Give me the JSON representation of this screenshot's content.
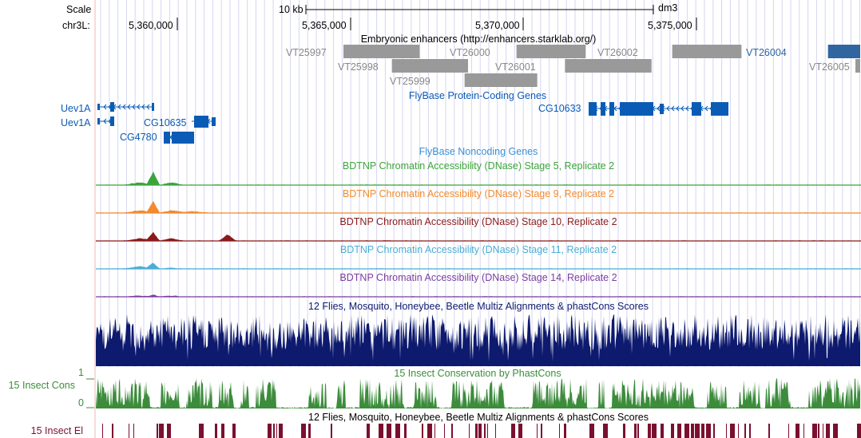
{
  "ruler": {
    "scale_label": "Scale",
    "chrom_label": "chr3L:",
    "scale_bar_text": "10 kb",
    "assembly": "dm3",
    "positions": [
      "5,360,000",
      "5,365,000",
      "5,370,000",
      "5,375,000"
    ]
  },
  "tracks": {
    "enhancers": {
      "title": "Embryonic enhancers (http://enhancers.starklab.org/)",
      "items": [
        {
          "name": "VT25997",
          "start": 5364800,
          "end": 5367000,
          "row": 0
        },
        {
          "name": "VT26000",
          "start": 5369800,
          "end": 5371800,
          "row": 0
        },
        {
          "name": "VT26002",
          "start": 5374300,
          "end": 5376300,
          "row": 0
        },
        {
          "name": "VT26004",
          "start": 5378800,
          "end": 5380700,
          "row": 0,
          "highlight": true
        },
        {
          "name": "VT25998",
          "start": 5366200,
          "end": 5368400,
          "row": 1
        },
        {
          "name": "VT26001",
          "start": 5371200,
          "end": 5373700,
          "row": 1
        },
        {
          "name": "VT26005",
          "start": 5380500,
          "end": 5380700,
          "row": 1
        },
        {
          "name": "VT25999",
          "start": 5368300,
          "end": 5370400,
          "row": 2
        }
      ]
    },
    "protein_genes": {
      "title": "FlyBase Protein-Coding Genes",
      "items": [
        "Uev1A",
        "Uev1A",
        "CG10635",
        "CG4780",
        "CG10633"
      ]
    },
    "noncoding_genes": {
      "title": "FlyBase Noncoding Genes"
    },
    "dnase": [
      {
        "title": "BDTNP Chromatin Accessibility (DNase) Stage 5, Replicate 2",
        "color": "#3ca43c"
      },
      {
        "title": "BDTNP Chromatin Accessibility (DNase) Stage 9, Replicate 2",
        "color": "#f28a2e"
      },
      {
        "title": "BDTNP Chromatin Accessibility (DNase) Stage 10, Replicate 2",
        "color": "#8b1a1a"
      },
      {
        "title": "BDTNP Chromatin Accessibility (DNase) Stage 11, Replicate 2",
        "color": "#4aaed6"
      },
      {
        "title": "BDTNP Chromatin Accessibility (DNase) Stage 14, Replicate 2",
        "color": "#7a3ea0"
      }
    ],
    "multiz": {
      "title": "12 Flies, Mosquito, Honeybee, Beetle Multiz Alignments & phastCons Scores",
      "color": "#0d1a6e"
    },
    "phastcons": {
      "label": "15 Insect Cons",
      "title": "15 Insect Conservation by PhastCons",
      "y_max": "1",
      "y_min": "0",
      "color": "#3c8c3c"
    },
    "elements": {
      "label": "15 Insect El",
      "title": "12 Flies, Mosquito, Honeybee, Beetle Multiz Alignments & phastCons Scores",
      "color": "#7a1030"
    }
  },
  "colors": {
    "gene": "#0a5bb5",
    "enhancer": "#999999",
    "enhancer_highlight": "#2f66a0",
    "gene_title": "#0a5bb5"
  }
}
